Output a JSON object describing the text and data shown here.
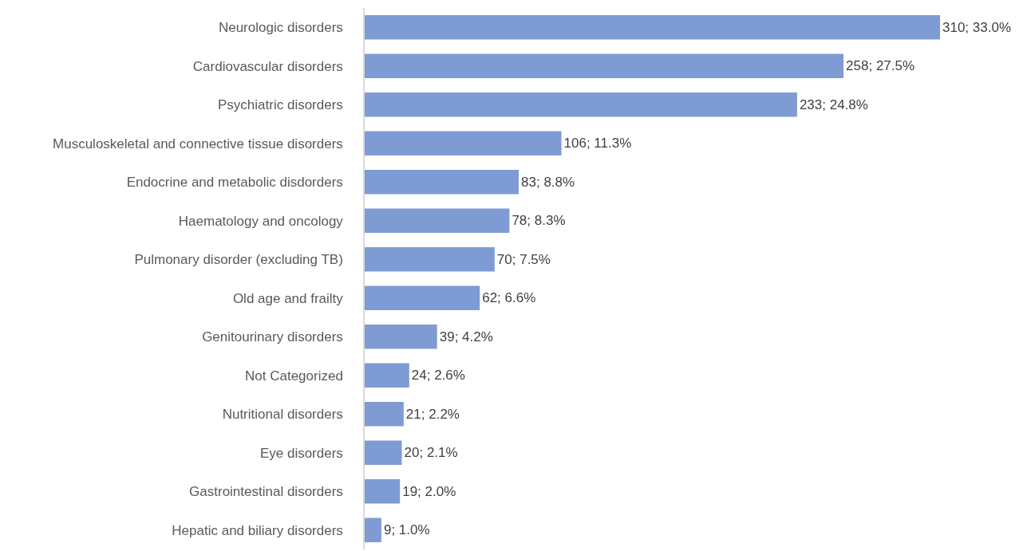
{
  "chart_data": {
    "type": "bar",
    "orientation": "horizontal",
    "categories": [
      "Neurologic disorders",
      "Cardiovascular disorders",
      "Psychiatric disorders",
      "Musculoskeletal and connective tissue disorders",
      "Endocrine and metabolic disdorders",
      "Haematology and oncology",
      "Pulmonary disorder (excluding TB)",
      "Old age and frailty",
      "Genitourinary disorders",
      "Not Categorized",
      "Nutritional disorders",
      "Eye disorders",
      "Gastrointestinal disorders",
      "Hepatic and biliary disorders"
    ],
    "values": [
      310,
      258,
      233,
      106,
      83,
      78,
      70,
      62,
      39,
      24,
      21,
      20,
      19,
      9
    ],
    "value_labels": [
      "310; 33.0%",
      "258; 27.5%",
      "233; 24.8%",
      "106; 11.3%",
      "83; 8.8%",
      "78; 8.3%",
      "70; 7.5%",
      "62; 6.6%",
      "39; 4.2%",
      "24; 2.6%",
      "21; 2.2%",
      "20; 2.1%",
      "19; 2.0%",
      "9; 1.0%"
    ],
    "color": "#7f9bd3",
    "tick_labels": "y"
  }
}
